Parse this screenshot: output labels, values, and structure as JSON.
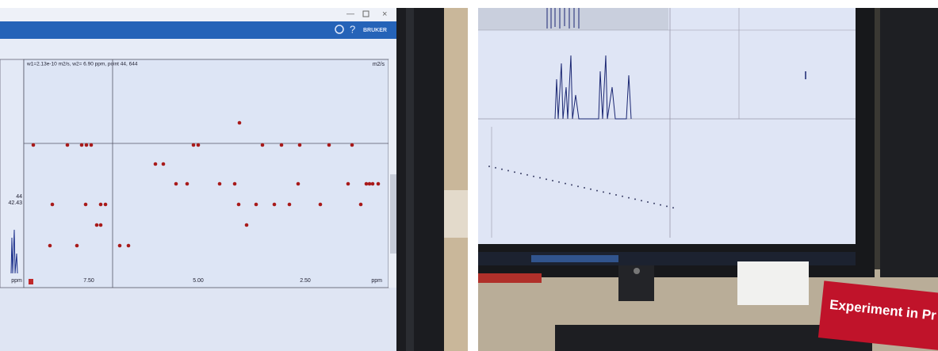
{
  "left_screen": {
    "cursor_readout": "w1=2.13e-10 m2/s, w2= 6.90 ppm, point 44, 644",
    "unit": "m2/s",
    "x_ticks": [
      "7.50",
      "5.00",
      "2.50"
    ],
    "x_unit": "ppm",
    "side_labels": [
      "44",
      "42.43"
    ],
    "side_unit": "ppm"
  },
  "right_scene": {
    "sign": "Experiment in Pr"
  }
}
